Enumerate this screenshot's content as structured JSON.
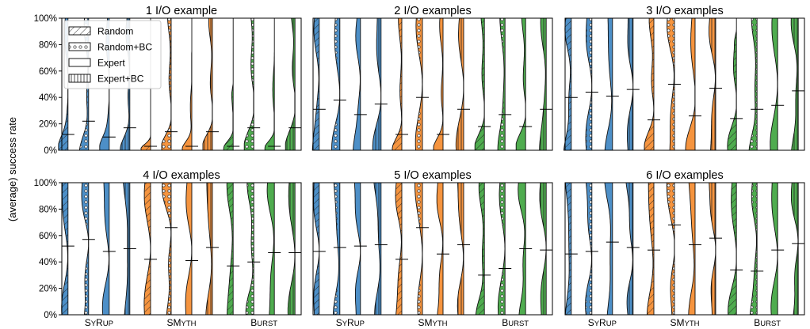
{
  "chart_data": {
    "type": "violin",
    "ylabel": "(average) success rate",
    "yticks": [
      "0%",
      "20%",
      "40%",
      "60%",
      "80%",
      "100%"
    ],
    "ylim": [
      0,
      100
    ],
    "grid": false,
    "legend": {
      "placement": "top-left of first panel",
      "entries": [
        {
          "label": "Random",
          "pattern": "hatch-diagonal"
        },
        {
          "label": "Random+BC",
          "pattern": "dots"
        },
        {
          "label": "Expert",
          "pattern": "plain"
        },
        {
          "label": "Expert+BC",
          "pattern": "hatch-vertical"
        }
      ]
    },
    "categories": [
      {
        "label": "SyRup",
        "parts": [
          [
            "S",
            "big"
          ],
          [
            "Y",
            "small"
          ],
          [
            "R",
            "big"
          ],
          [
            "UP",
            "small"
          ]
        ]
      },
      {
        "label": "SMyth",
        "parts": [
          [
            "SM",
            "big"
          ],
          [
            "YTH",
            "small"
          ]
        ]
      },
      {
        "label": "Burst",
        "parts": [
          [
            "B",
            "big"
          ],
          [
            "URST",
            "small"
          ]
        ]
      }
    ],
    "colors": {
      "SyRup": "#4d8fc7",
      "SMyth": "#f5943f",
      "Burst": "#4fac4f"
    },
    "variants": [
      "Random",
      "Random+BC",
      "Expert",
      "Expert+BC"
    ],
    "panels": [
      {
        "title": "1 I/O example",
        "means": [
          [
            12,
            22,
            10,
            17
          ],
          [
            3,
            14,
            3,
            14
          ],
          [
            3,
            17,
            3,
            17
          ]
        ],
        "maxes": [
          [
            100,
            100,
            100,
            100
          ],
          [
            10,
            100,
            75,
            100
          ],
          [
            50,
            100,
            75,
            100
          ]
        ]
      },
      {
        "title": "2 I/O examples",
        "means": [
          [
            31,
            38,
            27,
            35
          ],
          [
            12,
            40,
            12,
            31
          ],
          [
            18,
            27,
            18,
            31
          ]
        ],
        "maxes": [
          [
            100,
            100,
            100,
            100
          ],
          [
            100,
            100,
            100,
            100
          ],
          [
            100,
            100,
            100,
            100
          ]
        ]
      },
      {
        "title": "3 I/O examples",
        "means": [
          [
            40,
            44,
            41,
            46
          ],
          [
            23,
            50,
            26,
            47
          ],
          [
            24,
            31,
            34,
            45
          ]
        ],
        "maxes": [
          [
            100,
            100,
            100,
            100
          ],
          [
            100,
            100,
            100,
            100
          ],
          [
            90,
            100,
            100,
            100
          ]
        ]
      },
      {
        "title": "4 I/O examples",
        "means": [
          [
            52,
            57,
            48,
            50
          ],
          [
            42,
            66,
            41,
            51
          ],
          [
            37,
            40,
            47,
            47
          ]
        ],
        "maxes": [
          [
            100,
            100,
            100,
            100
          ],
          [
            100,
            100,
            100,
            100
          ],
          [
            100,
            100,
            100,
            100
          ]
        ]
      },
      {
        "title": "5 I/O examples",
        "means": [
          [
            48,
            51,
            52,
            53
          ],
          [
            42,
            66,
            46,
            53
          ],
          [
            30,
            35,
            50,
            49
          ]
        ],
        "maxes": [
          [
            100,
            100,
            100,
            100
          ],
          [
            100,
            100,
            100,
            100
          ],
          [
            100,
            100,
            100,
            100
          ]
        ]
      },
      {
        "title": "6 I/O examples",
        "means": [
          [
            46,
            48,
            55,
            51
          ],
          [
            49,
            68,
            53,
            58
          ],
          [
            34,
            33,
            49,
            54
          ]
        ],
        "maxes": [
          [
            100,
            100,
            100,
            100
          ],
          [
            100,
            100,
            100,
            100
          ],
          [
            100,
            100,
            100,
            100
          ]
        ]
      }
    ]
  }
}
